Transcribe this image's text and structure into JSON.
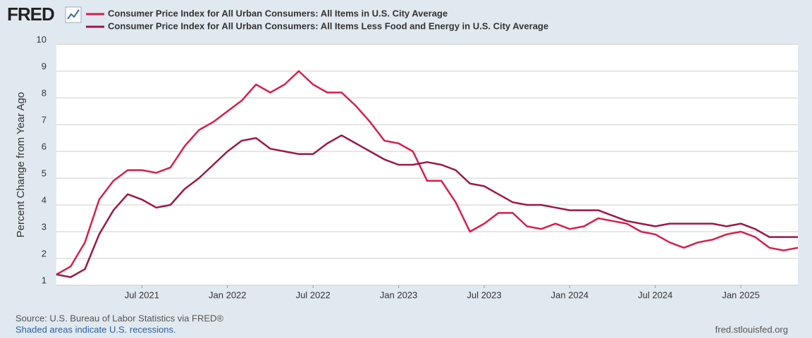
{
  "logo": "FRED",
  "chart_data": {
    "type": "line",
    "y_label": "Percent Change from Year Ago",
    "x": [
      "2021-01",
      "2021-02",
      "2021-03",
      "2021-04",
      "2021-05",
      "2021-06",
      "2021-07",
      "2021-08",
      "2021-09",
      "2021-10",
      "2021-11",
      "2021-12",
      "2022-01",
      "2022-02",
      "2022-03",
      "2022-04",
      "2022-05",
      "2022-06",
      "2022-07",
      "2022-08",
      "2022-09",
      "2022-10",
      "2022-11",
      "2022-12",
      "2023-01",
      "2023-02",
      "2023-03",
      "2023-04",
      "2023-05",
      "2023-06",
      "2023-07",
      "2023-08",
      "2023-09",
      "2023-10",
      "2023-11",
      "2023-12",
      "2024-01",
      "2024-02",
      "2024-03",
      "2024-04",
      "2024-05",
      "2024-06",
      "2024-07",
      "2024-08",
      "2024-09",
      "2024-10",
      "2024-11",
      "2024-12",
      "2025-01",
      "2025-02",
      "2025-03",
      "2025-04",
      "2025-05"
    ],
    "series": [
      {
        "name": "Consumer Price Index for All Urban Consumers: All Items in U.S. City Average",
        "color": "#d81e4b",
        "values": [
          1.4,
          1.7,
          2.6,
          4.2,
          4.9,
          5.3,
          5.3,
          5.2,
          5.4,
          6.2,
          6.8,
          7.1,
          7.5,
          7.9,
          8.5,
          8.2,
          8.5,
          9.0,
          8.5,
          8.2,
          8.2,
          7.7,
          7.1,
          6.4,
          6.3,
          6.0,
          4.9,
          4.9,
          4.1,
          3.0,
          3.3,
          3.7,
          3.7,
          3.2,
          3.1,
          3.3,
          3.1,
          3.2,
          3.5,
          3.4,
          3.3,
          3.0,
          2.9,
          2.6,
          2.4,
          2.6,
          2.7,
          2.9,
          3.0,
          2.8,
          2.4,
          2.3,
          2.4
        ]
      },
      {
        "name": "Consumer Price Index for All Urban Consumers: All Items Less Food and Energy in U.S. City Average",
        "color": "#9c1748",
        "values": [
          1.4,
          1.3,
          1.6,
          2.9,
          3.8,
          4.4,
          4.2,
          3.9,
          4.0,
          4.6,
          5.0,
          5.5,
          6.0,
          6.4,
          6.5,
          6.1,
          6.0,
          5.9,
          5.9,
          6.3,
          6.6,
          6.3,
          6.0,
          5.7,
          5.5,
          5.5,
          5.6,
          5.5,
          5.3,
          4.8,
          4.7,
          4.4,
          4.1,
          4.0,
          4.0,
          3.9,
          3.8,
          3.8,
          3.8,
          3.6,
          3.4,
          3.3,
          3.2,
          3.3,
          3.3,
          3.3,
          3.3,
          3.2,
          3.3,
          3.1,
          2.8,
          2.8,
          2.8
        ]
      }
    ],
    "xlim": [
      "2021-01",
      "2025-05"
    ],
    "xticks": [
      {
        "value": "2021-07",
        "label": "Jul 2021"
      },
      {
        "value": "2022-01",
        "label": "Jan 2022"
      },
      {
        "value": "2022-07",
        "label": "Jul 2022"
      },
      {
        "value": "2023-01",
        "label": "Jan 2023"
      },
      {
        "value": "2023-07",
        "label": "Jul 2023"
      },
      {
        "value": "2024-01",
        "label": "Jan 2024"
      },
      {
        "value": "2024-07",
        "label": "Jul 2024"
      },
      {
        "value": "2025-01",
        "label": "Jan 2025"
      }
    ],
    "ylim": [
      1,
      10
    ],
    "yticks": [
      1,
      2,
      3,
      4,
      5,
      6,
      7,
      8,
      9,
      10
    ],
    "grid": true,
    "source": "Source: U.S. Bureau of Labor Statistics via FRED®",
    "note": "Shaded areas indicate U.S. recessions.",
    "site": "fred.stlouisfed.org"
  }
}
